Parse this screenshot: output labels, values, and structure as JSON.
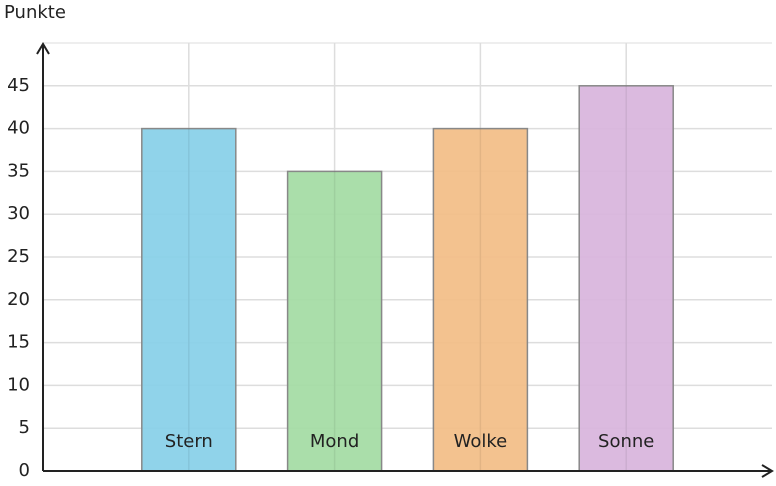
{
  "chart_data": {
    "type": "bar",
    "y_label": "Punkte",
    "categories": [
      "Stern",
      "Mond",
      "Wolke",
      "Sonne"
    ],
    "values": [
      40,
      35,
      40,
      45
    ],
    "colors": [
      "#87cfe8",
      "#a3dba3",
      "#f2bd85",
      "#d8b4dc"
    ],
    "ylim": [
      0,
      50
    ],
    "yticks": [
      0,
      5,
      10,
      15,
      20,
      25,
      30,
      35,
      40,
      45
    ],
    "grid": true
  }
}
